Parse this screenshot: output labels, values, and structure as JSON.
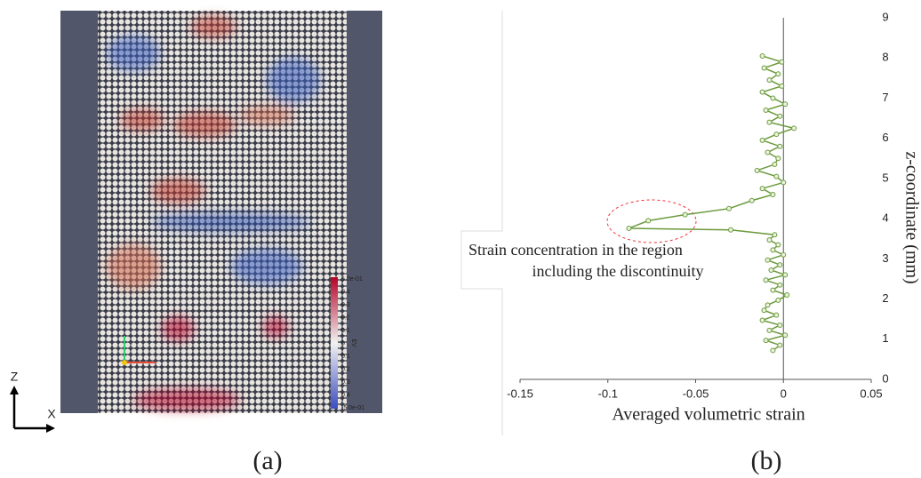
{
  "panel_a": {
    "colorbar_labels": [
      "5.0e-01",
      "0.4",
      "0.3",
      "0.2",
      "0.1",
      "0",
      "0.1",
      "0.2",
      "0.3",
      "0.4",
      "-5.0e-01"
    ],
    "colorbar_title": "EV",
    "axis_z": "Z",
    "axis_x": "X",
    "caption": "(a)"
  },
  "chart_data": {
    "type": "line",
    "x_label": "Averaged volumetric strain",
    "y_label": "z-coordinate (mm)",
    "annotation": [
      "Strain concentration in the region",
      "including the discontinuity"
    ],
    "caption": "(b)",
    "x": [
      -0.006,
      -0.002,
      -0.01,
      0.001,
      -0.008,
      -0.002,
      -0.012,
      -0.004,
      -0.011,
      -0.009,
      -0.003,
      0.002,
      -0.006,
      -0.002,
      -0.01,
      0.001,
      -0.007,
      -0.002,
      -0.009,
      0.0,
      -0.006,
      -0.003,
      -0.008,
      -0.005,
      -0.03,
      -0.088,
      -0.077,
      -0.056,
      -0.031,
      -0.018,
      -0.006,
      -0.012,
      0.0,
      -0.004,
      -0.015,
      -0.005,
      -0.003,
      -0.009,
      -0.002,
      -0.012,
      -0.004,
      0.006,
      -0.008,
      -0.002,
      -0.01,
      0.001,
      -0.006,
      -0.012,
      -0.001,
      -0.008,
      -0.003,
      -0.011,
      -0.001,
      -0.012
    ],
    "series": [
      {
        "color": "#6b9a3c",
        "values": [
          0.72,
          0.85,
          0.97,
          1.1,
          1.22,
          1.35,
          1.47,
          1.6,
          1.72,
          1.85,
          1.97,
          2.1,
          2.22,
          2.35,
          2.47,
          2.6,
          2.72,
          2.85,
          2.97,
          3.1,
          3.22,
          3.35,
          3.47,
          3.6,
          3.72,
          3.76,
          3.95,
          4.1,
          4.25,
          4.45,
          4.6,
          4.75,
          4.9,
          5.05,
          5.2,
          5.35,
          5.5,
          5.65,
          5.8,
          5.95,
          6.1,
          6.25,
          6.4,
          6.55,
          6.7,
          6.85,
          7.0,
          7.15,
          7.3,
          7.45,
          7.6,
          7.75,
          7.9,
          8.05
        ]
      }
    ],
    "xlim": [
      -0.15,
      0.05
    ],
    "xticks": [
      -0.15,
      -0.1,
      -0.05,
      0,
      0.05
    ],
    "ylim": [
      0,
      9
    ],
    "yticks": [
      0,
      1,
      2,
      3,
      4,
      5,
      6,
      7,
      8,
      9
    ]
  }
}
